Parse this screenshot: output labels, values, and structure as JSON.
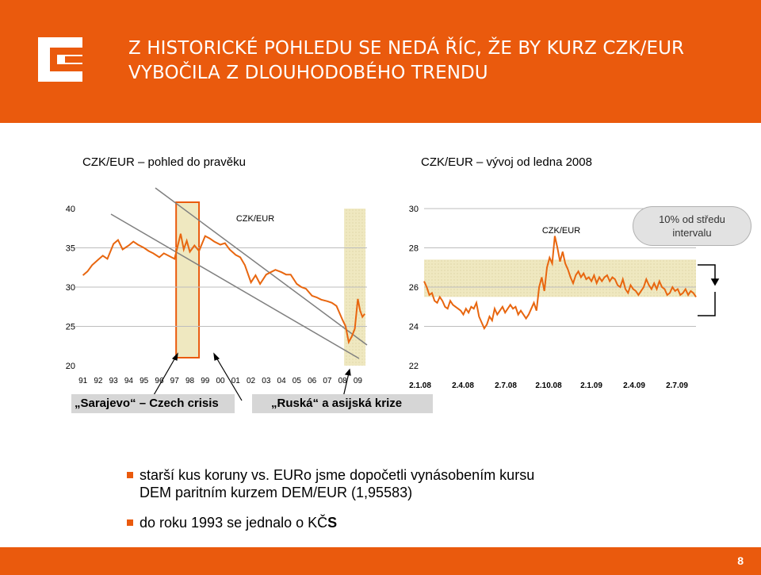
{
  "header": {
    "title_line1": "Z HISTORICKÉ POHLEDU SE NEDÁ ŘÍC, ŽE BY KURZ CZK/EUR",
    "title_line2": "VYBOČILA Z DLOUHODOBÉHO TRENDU"
  },
  "colors": {
    "accent": "#ea5a0d",
    "line": "#e8660f",
    "band": "#efe8c0",
    "trend": "#7f7f7f"
  },
  "left_chart_heading": "CZK/EUR – pohled do pravěku",
  "right_chart_heading": "CZK/EUR – vývoj od ledna 2008",
  "tags": {
    "sarajevo": "„Sarajevo“ – Czech crisis",
    "ruska": "„Ruská“ a asijská krize"
  },
  "callout": "10% od středu intervalu",
  "bullets": {
    "b1_line1": "starší kus koruny vs. EURo jsme dopočetli vynásobením kursu",
    "b1_line2": "DEM paritním kurzem DEM/EUR (1,95583)",
    "b2_prefix": "do roku 1993 se jednalo o KČ",
    "b2_bold": "S"
  },
  "page_number": "8",
  "chart_data": [
    {
      "type": "line",
      "series": [
        {
          "name": "CZK/EUR",
          "x": [
            1991.0,
            1991.3,
            1991.6,
            1992.0,
            1992.3,
            1992.6,
            1993.0,
            1993.3,
            1993.6,
            1994.0,
            1994.3,
            1994.6,
            1995.0,
            1995.3,
            1995.6,
            1996.0,
            1996.3,
            1996.6,
            1997.0,
            1997.2,
            1997.4,
            1997.6,
            1997.8,
            1998.0,
            1998.3,
            1998.6,
            1999.0,
            1999.3,
            1999.6,
            2000.0,
            2000.3,
            2000.6,
            2001.0,
            2001.3,
            2001.6,
            2002.0,
            2002.3,
            2002.6,
            2003.0,
            2003.3,
            2003.6,
            2004.0,
            2004.3,
            2004.6,
            2005.0,
            2005.3,
            2005.6,
            2006.0,
            2006.3,
            2006.6,
            2007.0,
            2007.3,
            2007.6,
            2008.0,
            2008.2,
            2008.4,
            2008.6,
            2008.8,
            2009.0,
            2009.15,
            2009.3,
            2009.45
          ],
          "y": [
            31.5,
            32.0,
            32.8,
            33.5,
            34.0,
            33.6,
            35.5,
            36.0,
            34.8,
            35.3,
            35.8,
            35.4,
            35.0,
            34.6,
            34.3,
            33.8,
            34.3,
            34.0,
            33.6,
            35.2,
            36.8,
            34.8,
            35.9,
            34.5,
            35.3,
            34.6,
            36.5,
            36.2,
            35.8,
            35.4,
            35.6,
            34.8,
            34.1,
            33.8,
            32.8,
            30.6,
            31.5,
            30.4,
            31.6,
            31.9,
            32.2,
            31.9,
            31.6,
            31.6,
            30.4,
            30.0,
            29.8,
            28.9,
            28.7,
            28.4,
            28.2,
            28.0,
            27.6,
            25.8,
            25.0,
            23.0,
            23.7,
            24.7,
            28.5,
            27.0,
            26.2,
            26.6
          ]
        }
      ],
      "title": "CZK/EUR",
      "xlabel": "",
      "ylabel": "",
      "tick_labels_x": [
        "91",
        "92",
        "93",
        "94",
        "95",
        "96",
        "97",
        "98",
        "99",
        "00",
        "01",
        "02",
        "03",
        "04",
        "05",
        "06",
        "07",
        "08",
        "09"
      ],
      "ylim": [
        20,
        40
      ],
      "yticks": [
        20,
        25,
        30,
        35,
        40
      ],
      "highlight_bands": [
        [
          1997.1,
          1998.6
        ],
        [
          2008.1,
          2009.5
        ]
      ]
    },
    {
      "type": "line",
      "series": [
        {
          "name": "CZK/EUR",
          "x": [
            0,
            0.2,
            0.4,
            0.6,
            0.8,
            1.0,
            1.2,
            1.4,
            1.6,
            1.8,
            2.0,
            2.2,
            2.4,
            2.6,
            2.8,
            3.0,
            3.2,
            3.4,
            3.6,
            3.8,
            4.0,
            4.2,
            4.4,
            4.6,
            4.8,
            5.0,
            5.2,
            5.4,
            5.6,
            5.8,
            6.0,
            6.2,
            6.4,
            6.6,
            6.8,
            7.0,
            7.2,
            7.4,
            7.6,
            7.8,
            8.0,
            8.2,
            8.4,
            8.6,
            8.8,
            9.0,
            9.2,
            9.4,
            9.6,
            9.8,
            10.0,
            10.2,
            10.4,
            10.6,
            10.8,
            11.0,
            11.2,
            11.4,
            11.6,
            11.8,
            12.0,
            12.2,
            12.4,
            12.6,
            12.8,
            13.0,
            13.2,
            13.4,
            13.6,
            13.8,
            14.0,
            14.2,
            14.4,
            14.6,
            14.8,
            15.0,
            15.2,
            15.4,
            15.6,
            15.8,
            16.0,
            16.2,
            16.4,
            16.6,
            16.8,
            17.0,
            17.2,
            17.4,
            17.6,
            17.8,
            18.0,
            18.2,
            18.4,
            18.6,
            18.8,
            19.0,
            19.2,
            19.4,
            19.6,
            19.8,
            20.0,
            20.2,
            20.4,
            20.6,
            20.8
          ],
          "y": [
            26.3,
            26.0,
            25.6,
            25.7,
            25.3,
            25.2,
            25.5,
            25.3,
            25.0,
            24.9,
            25.3,
            25.1,
            25.0,
            24.9,
            24.8,
            24.6,
            24.9,
            24.7,
            25.0,
            24.9,
            25.2,
            24.5,
            24.2,
            23.9,
            24.1,
            24.5,
            24.3,
            24.9,
            24.6,
            24.8,
            25.0,
            24.7,
            24.9,
            25.1,
            24.9,
            25.0,
            24.6,
            24.8,
            24.6,
            24.4,
            24.6,
            24.9,
            25.2,
            24.8,
            26.0,
            26.5,
            25.8,
            27.0,
            27.5,
            27.2,
            28.6,
            28.0,
            27.3,
            27.8,
            27.2,
            26.9,
            26.5,
            26.2,
            26.6,
            26.8,
            26.5,
            26.7,
            26.4,
            26.5,
            26.3,
            26.6,
            26.2,
            26.5,
            26.3,
            26.5,
            26.6,
            26.3,
            26.5,
            26.4,
            26.1,
            26.0,
            26.4,
            25.9,
            25.7,
            26.1,
            25.9,
            25.8,
            25.6,
            25.8,
            26.0,
            26.4,
            26.1,
            25.9,
            26.2,
            25.9,
            26.3,
            26.0,
            25.9,
            25.6,
            25.7,
            26.0,
            25.8,
            25.9,
            25.6,
            25.7,
            25.9,
            25.6,
            25.8,
            25.7,
            25.5
          ],
          "note_x_unit": "months since 2.1.08"
        }
      ],
      "title": "CZK/EUR",
      "tick_labels_x": [
        "2.1.08",
        "2.4.08",
        "2.7.08",
        "2.10.08",
        "2.1.09",
        "2.4.09",
        "2.7.09"
      ],
      "ylim": [
        22,
        30
      ],
      "yticks": [
        22,
        24,
        26,
        28,
        30
      ],
      "band_y": [
        25.5,
        27.4
      ]
    }
  ]
}
